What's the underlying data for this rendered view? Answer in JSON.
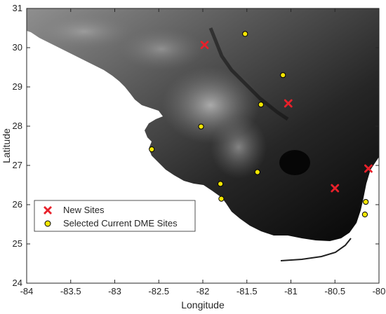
{
  "chart_data": {
    "type": "scatter",
    "xlabel": "Longitude",
    "ylabel": "Latitude",
    "xlim": [
      -84,
      -80
    ],
    "ylim": [
      24,
      31
    ],
    "x_ticks": [
      "-84",
      "-83.5",
      "-83",
      "-82.5",
      "-82",
      "-81.5",
      "-81",
      "-80.5",
      "-80"
    ],
    "y_ticks": [
      "24",
      "25",
      "26",
      "27",
      "28",
      "29",
      "30",
      "31"
    ],
    "legend_position": "lower-left",
    "background": "grayscale elevation map of Florida peninsula, higher terrain lighter",
    "series": [
      {
        "name": "New Sites",
        "marker": "x",
        "color": "#e8202a",
        "points": [
          {
            "x": -81.98,
            "y": 30.07
          },
          {
            "x": -81.03,
            "y": 28.58
          },
          {
            "x": -80.5,
            "y": 26.42
          },
          {
            "x": -80.12,
            "y": 26.92
          }
        ]
      },
      {
        "name": "Selected Current DME Sites",
        "marker": "circle",
        "color": "#f5e600",
        "points": [
          {
            "x": -81.52,
            "y": 30.35
          },
          {
            "x": -81.09,
            "y": 29.3
          },
          {
            "x": -81.34,
            "y": 28.55
          },
          {
            "x": -82.02,
            "y": 27.99
          },
          {
            "x": -82.58,
            "y": 27.41
          },
          {
            "x": -81.38,
            "y": 26.83
          },
          {
            "x": -81.8,
            "y": 26.53
          },
          {
            "x": -81.79,
            "y": 26.15
          },
          {
            "x": -80.15,
            "y": 26.07
          },
          {
            "x": -80.16,
            "y": 25.75
          }
        ]
      }
    ]
  }
}
